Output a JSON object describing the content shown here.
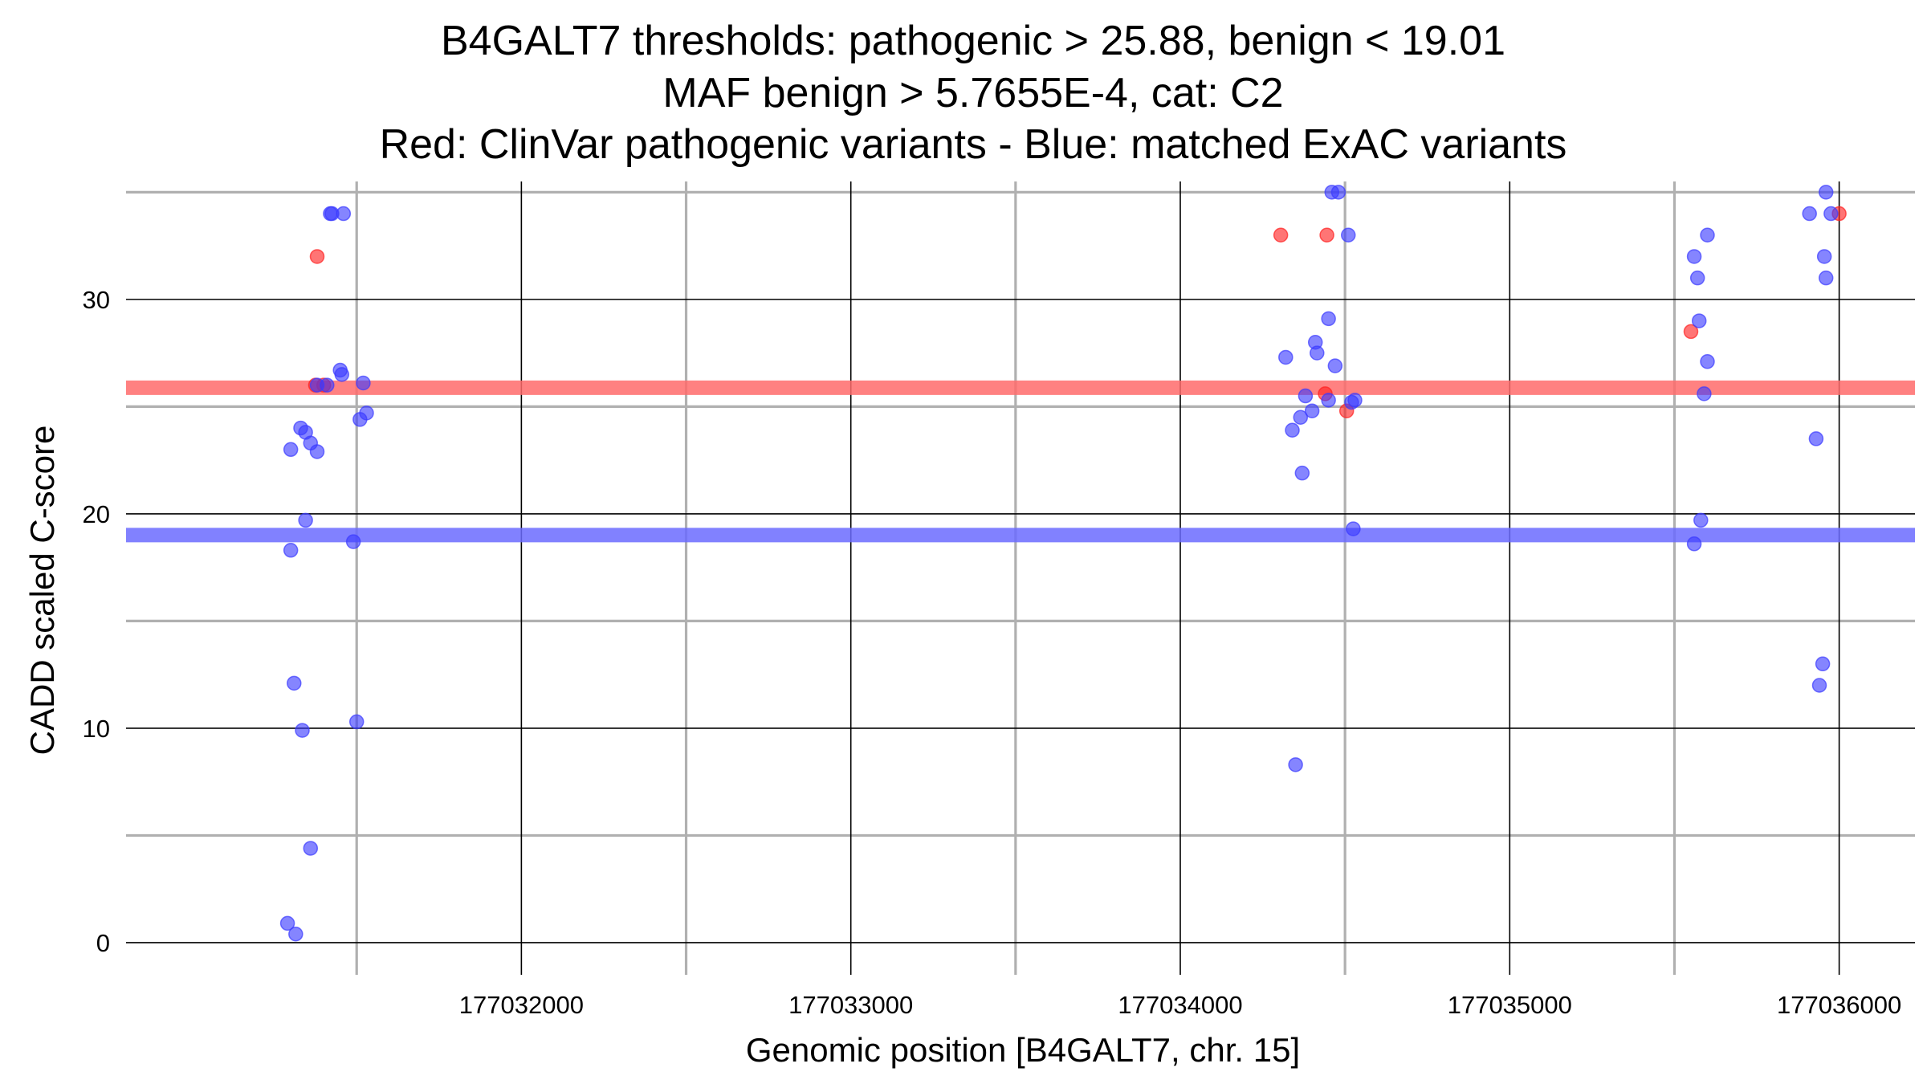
{
  "chart_data": {
    "type": "scatter",
    "title": [
      "B4GALT7 thresholds: pathogenic > 25.88, benign < 19.01",
      "MAF benign > 5.7655E-4, cat: C2",
      "Red: ClinVar pathogenic variants - Blue: matched ExAC variants"
    ],
    "xlabel": "Genomic position [B4GALT7, chr. 15]",
    "ylabel": "CADD scaled C-score",
    "xlim": [
      177030800,
      177036230
    ],
    "ylim": [
      -1.5,
      35.5
    ],
    "x_major_ticks": [
      177032000,
      177033000,
      177034000,
      177035000,
      177036000
    ],
    "x_tick_labels": [
      "177032000",
      "177033000",
      "177034000",
      "177035000",
      "177036000"
    ],
    "x_minor_gridlines": [
      177031500,
      177032500,
      177033500,
      177034500,
      177035500
    ],
    "y_major_ticks": [
      0,
      10,
      20,
      30
    ],
    "y_tick_labels": [
      "0",
      "10",
      "20",
      "30"
    ],
    "y_minor_gridlines": [
      5,
      15,
      25,
      35
    ],
    "thresholds": [
      {
        "name": "pathogenic",
        "value": 25.88,
        "color": "#ff6b6b"
      },
      {
        "name": "benign",
        "value": 19.01,
        "color": "#6b6bff"
      }
    ],
    "series": [
      {
        "name": "ClinVar pathogenic variants",
        "color": "#ff2020",
        "points": [
          [
            177031380,
            32.0
          ],
          [
            177031375,
            26.0
          ],
          [
            177031400,
            26.0
          ],
          [
            177034305,
            33.0
          ],
          [
            177034445,
            33.0
          ],
          [
            177034440,
            25.6
          ],
          [
            177034505,
            24.8
          ],
          [
            177035550,
            28.5
          ],
          [
            177036000,
            34.0
          ]
        ]
      },
      {
        "name": "matched ExAC variants",
        "color": "#3a3aff",
        "points": [
          [
            177031420,
            34.0
          ],
          [
            177031425,
            34.0
          ],
          [
            177031460,
            34.0
          ],
          [
            177031450,
            26.7
          ],
          [
            177031455,
            26.5
          ],
          [
            177031380,
            26.0
          ],
          [
            177031410,
            26.0
          ],
          [
            177031520,
            26.1
          ],
          [
            177031530,
            24.7
          ],
          [
            177031510,
            24.4
          ],
          [
            177031330,
            24.0
          ],
          [
            177031345,
            23.8
          ],
          [
            177031360,
            23.3
          ],
          [
            177031300,
            23.0
          ],
          [
            177031380,
            22.9
          ],
          [
            177031345,
            19.7
          ],
          [
            177031300,
            18.3
          ],
          [
            177031490,
            18.7
          ],
          [
            177031310,
            12.1
          ],
          [
            177031335,
            9.9
          ],
          [
            177031500,
            10.3
          ],
          [
            177031360,
            4.4
          ],
          [
            177031290,
            0.9
          ],
          [
            177031315,
            0.4
          ],
          [
            177034460,
            35.0
          ],
          [
            177034480,
            35.0
          ],
          [
            177034510,
            33.0
          ],
          [
            177034450,
            29.1
          ],
          [
            177034410,
            28.0
          ],
          [
            177034415,
            27.5
          ],
          [
            177034320,
            27.3
          ],
          [
            177034470,
            26.9
          ],
          [
            177034380,
            25.5
          ],
          [
            177034450,
            25.3
          ],
          [
            177034520,
            25.2
          ],
          [
            177034530,
            25.3
          ],
          [
            177034400,
            24.8
          ],
          [
            177034365,
            24.5
          ],
          [
            177034340,
            23.9
          ],
          [
            177034370,
            21.9
          ],
          [
            177034525,
            19.3
          ],
          [
            177034350,
            8.3
          ],
          [
            177035560,
            32.0
          ],
          [
            177035600,
            33.0
          ],
          [
            177035570,
            31.0
          ],
          [
            177035575,
            29.0
          ],
          [
            177035600,
            27.1
          ],
          [
            177035590,
            25.6
          ],
          [
            177035580,
            19.7
          ],
          [
            177035560,
            18.6
          ],
          [
            177035910,
            34.0
          ],
          [
            177035960,
            35.0
          ],
          [
            177035975,
            34.0
          ],
          [
            177035955,
            32.0
          ],
          [
            177035960,
            31.0
          ],
          [
            177035930,
            23.5
          ],
          [
            177035950,
            13.0
          ],
          [
            177035940,
            12.0
          ]
        ]
      }
    ]
  }
}
